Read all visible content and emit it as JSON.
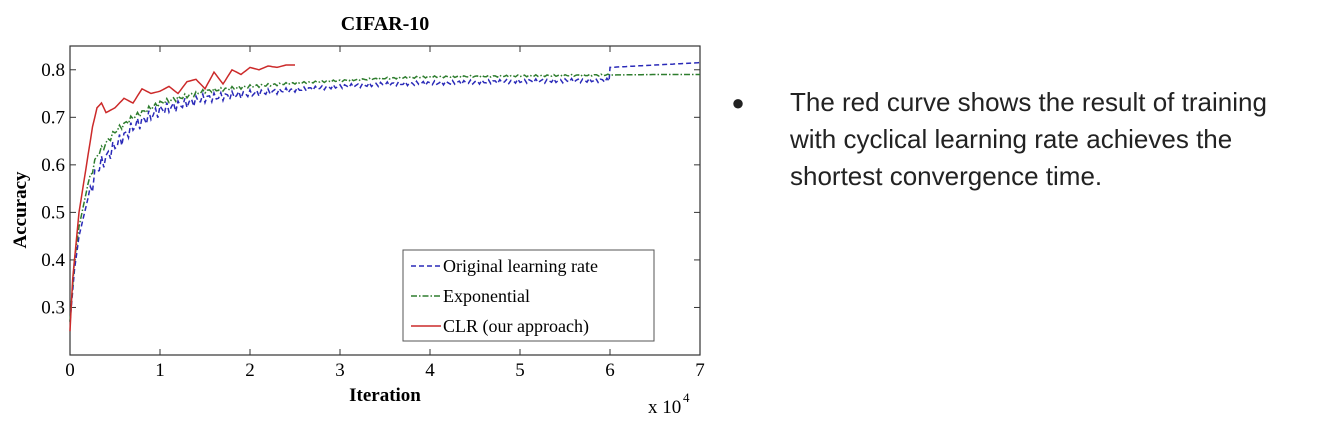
{
  "chart_data": {
    "type": "line",
    "title": "CIFAR-10",
    "xlabel": "Iteration",
    "ylabel": "Accuracy",
    "x_multiplier_label": "x 10",
    "x_multiplier_exp": "4",
    "xlim": [
      0,
      7
    ],
    "ylim": [
      0.2,
      0.85
    ],
    "xticks": [
      "0",
      "1",
      "2",
      "3",
      "4",
      "5",
      "6",
      "7"
    ],
    "yticks": [
      "0.3",
      "0.4",
      "0.5",
      "0.6",
      "0.7",
      "0.8"
    ],
    "legend_position": "bottom-right",
    "series": [
      {
        "name": "Original learning rate",
        "color": "#2a2ab8",
        "style": "dashed",
        "x": [
          0,
          0.05,
          0.1,
          0.2,
          0.3,
          0.5,
          0.7,
          1.0,
          1.5,
          2.0,
          2.5,
          3.0,
          3.5,
          4.0,
          4.5,
          5.0,
          5.5,
          5.99,
          6.0,
          6.5,
          7.0
        ],
        "y": [
          0.27,
          0.38,
          0.45,
          0.53,
          0.59,
          0.64,
          0.68,
          0.715,
          0.74,
          0.75,
          0.758,
          0.765,
          0.77,
          0.772,
          0.774,
          0.776,
          0.777,
          0.778,
          0.805,
          0.81,
          0.815
        ]
      },
      {
        "name": "Exponential",
        "color": "#2e7d2e",
        "style": "dashdot",
        "x": [
          0,
          0.05,
          0.1,
          0.2,
          0.3,
          0.5,
          0.7,
          1.0,
          1.5,
          2.0,
          2.5,
          3.0,
          3.5,
          4.0,
          4.5,
          5.0,
          5.5,
          6.0,
          6.5,
          7.0
        ],
        "y": [
          0.27,
          0.4,
          0.47,
          0.56,
          0.62,
          0.67,
          0.7,
          0.73,
          0.755,
          0.765,
          0.772,
          0.777,
          0.782,
          0.785,
          0.786,
          0.787,
          0.788,
          0.789,
          0.79,
          0.79
        ]
      },
      {
        "name": "CLR (our approach)",
        "color": "#cc2a2a",
        "style": "solid",
        "x": [
          0,
          0.03,
          0.06,
          0.1,
          0.15,
          0.2,
          0.25,
          0.3,
          0.35,
          0.4,
          0.5,
          0.6,
          0.7,
          0.8,
          0.9,
          1.0,
          1.1,
          1.2,
          1.3,
          1.4,
          1.5,
          1.6,
          1.7,
          1.8,
          1.9,
          2.0,
          2.1,
          2.2,
          2.3,
          2.4,
          2.5
        ],
        "y": [
          0.25,
          0.36,
          0.42,
          0.5,
          0.56,
          0.62,
          0.68,
          0.72,
          0.73,
          0.71,
          0.72,
          0.74,
          0.73,
          0.76,
          0.75,
          0.755,
          0.765,
          0.75,
          0.775,
          0.78,
          0.76,
          0.795,
          0.77,
          0.8,
          0.79,
          0.805,
          0.8,
          0.808,
          0.805,
          0.81,
          0.81
        ]
      }
    ]
  },
  "bullet": {
    "marker": "●",
    "text": "The red curve shows the result of training with cyclical learning rate achieves the shortest convergence time."
  }
}
